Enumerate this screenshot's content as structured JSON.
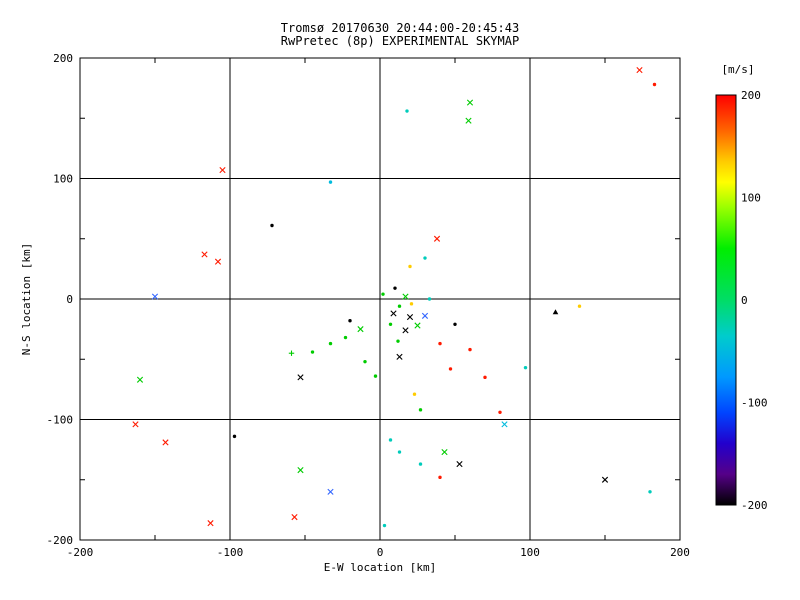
{
  "title": {
    "line1": "Tromsø 20170630 20:44:00-20:45:43",
    "line2": "RwPretec (8p) EXPERIMENTAL SKYMAP"
  },
  "axes": {
    "xlabel": "E-W location [km]",
    "ylabel": "N-S location [km]",
    "xlim": [
      -200,
      200
    ],
    "ylim": [
      -200,
      200
    ],
    "xticks": [
      -200,
      -100,
      0,
      100,
      200
    ],
    "yticks": [
      -200,
      -100,
      0,
      100,
      200
    ],
    "minor_step": 50,
    "grid": true
  },
  "colorbar": {
    "title": "[m/s]",
    "ticks": [
      200,
      100,
      0,
      -100,
      -200
    ],
    "vmin": -200,
    "vmax": 200,
    "stops": [
      {
        "value": 200,
        "color": "#ff0000"
      },
      {
        "value": 165,
        "color": "#ff6600"
      },
      {
        "value": 135,
        "color": "#ffcc00"
      },
      {
        "value": 115,
        "color": "#ffff00"
      },
      {
        "value": 90,
        "color": "#99ff00"
      },
      {
        "value": 50,
        "color": "#00ee00"
      },
      {
        "value": 0,
        "color": "#00dd66"
      },
      {
        "value": -35,
        "color": "#00cccc"
      },
      {
        "value": -75,
        "color": "#0099ff"
      },
      {
        "value": -110,
        "color": "#0044ff"
      },
      {
        "value": -140,
        "color": "#2200cc"
      },
      {
        "value": -170,
        "color": "#550088"
      },
      {
        "value": -200,
        "color": "#000000"
      }
    ]
  },
  "chart_data": {
    "type": "scatter",
    "title": "Tromsø 20170630 20:44:00-20:45:43 / RwPretec (8p) EXPERIMENTAL SKYMAP",
    "xlabel": "E-W location [km]",
    "ylabel": "N-S location [km]",
    "xlim": [
      -200,
      200
    ],
    "ylim": [
      -200,
      200
    ],
    "value_label": "[m/s]",
    "points": [
      {
        "x": 173,
        "y": 190,
        "v": 190,
        "marker": "x",
        "color": "#ff1a00"
      },
      {
        "x": 183,
        "y": 178,
        "v": 185,
        "marker": "dot",
        "color": "#ff1a00"
      },
      {
        "x": 60,
        "y": 163,
        "v": 75,
        "marker": "x",
        "color": "#00cc00"
      },
      {
        "x": 59,
        "y": 148,
        "v": 70,
        "marker": "x",
        "color": "#00cc00"
      },
      {
        "x": 18,
        "y": 156,
        "v": -40,
        "marker": "dot",
        "color": "#00ccbb"
      },
      {
        "x": -105,
        "y": 107,
        "v": 180,
        "marker": "x",
        "color": "#ff1a00"
      },
      {
        "x": -33,
        "y": 97,
        "v": -45,
        "marker": "dot",
        "color": "#00bbdd"
      },
      {
        "x": -72,
        "y": 61,
        "v": -190,
        "marker": "dot",
        "color": "#000000"
      },
      {
        "x": -117,
        "y": 37,
        "v": 185,
        "marker": "x",
        "color": "#ff1a00"
      },
      {
        "x": -108,
        "y": 31,
        "v": 180,
        "marker": "x",
        "color": "#ff1a00"
      },
      {
        "x": 38,
        "y": 50,
        "v": 175,
        "marker": "x",
        "color": "#ff1a00"
      },
      {
        "x": 20,
        "y": 27,
        "v": 125,
        "marker": "dot",
        "color": "#ffcc00"
      },
      {
        "x": 30,
        "y": 34,
        "v": -40,
        "marker": "dot",
        "color": "#00ccbb"
      },
      {
        "x": -150,
        "y": 2,
        "v": -120,
        "marker": "x",
        "color": "#3366ff"
      },
      {
        "x": 2,
        "y": 4,
        "v": 40,
        "marker": "dot",
        "color": "#00cc00"
      },
      {
        "x": 10,
        "y": 9,
        "v": -180,
        "marker": "dot",
        "color": "#000000"
      },
      {
        "x": 17,
        "y": 2,
        "v": 55,
        "marker": "x",
        "color": "#00cc00"
      },
      {
        "x": 13,
        "y": -6,
        "v": 45,
        "marker": "dot",
        "color": "#00cc00"
      },
      {
        "x": 9,
        "y": -12,
        "v": -185,
        "marker": "x",
        "color": "#000000"
      },
      {
        "x": 20,
        "y": -15,
        "v": -190,
        "marker": "x",
        "color": "#000000"
      },
      {
        "x": 30,
        "y": -14,
        "v": -110,
        "marker": "x",
        "color": "#3366ff"
      },
      {
        "x": 25,
        "y": -22,
        "v": 50,
        "marker": "x",
        "color": "#00cc00"
      },
      {
        "x": 17,
        "y": -26,
        "v": -180,
        "marker": "x",
        "color": "#000000"
      },
      {
        "x": 7,
        "y": -21,
        "v": 45,
        "marker": "dot",
        "color": "#00cc00"
      },
      {
        "x": 50,
        "y": -21,
        "v": -195,
        "marker": "dot",
        "color": "#000000"
      },
      {
        "x": 117,
        "y": -11,
        "v": -200,
        "marker": "tri",
        "color": "#000000"
      },
      {
        "x": 133,
        "y": -6,
        "v": 120,
        "marker": "dot",
        "color": "#ffcc00"
      },
      {
        "x": -23,
        "y": -32,
        "v": 40,
        "marker": "dot",
        "color": "#00cc00"
      },
      {
        "x": -33,
        "y": -37,
        "v": 35,
        "marker": "dot",
        "color": "#00cc00"
      },
      {
        "x": -45,
        "y": -44,
        "v": 45,
        "marker": "dot",
        "color": "#00cc00"
      },
      {
        "x": -59,
        "y": -45,
        "v": 50,
        "marker": "plus",
        "color": "#00cc00"
      },
      {
        "x": -53,
        "y": -65,
        "v": -185,
        "marker": "x",
        "color": "#000000"
      },
      {
        "x": -160,
        "y": -67,
        "v": 60,
        "marker": "x",
        "color": "#00cc00"
      },
      {
        "x": -10,
        "y": -52,
        "v": 40,
        "marker": "dot",
        "color": "#00cc00"
      },
      {
        "x": -3,
        "y": -64,
        "v": 35,
        "marker": "dot",
        "color": "#00cc00"
      },
      {
        "x": 13,
        "y": -48,
        "v": -190,
        "marker": "x",
        "color": "#000000"
      },
      {
        "x": 40,
        "y": -37,
        "v": 170,
        "marker": "dot",
        "color": "#ff1a00"
      },
      {
        "x": 60,
        "y": -42,
        "v": 175,
        "marker": "dot",
        "color": "#ff1a00"
      },
      {
        "x": 47,
        "y": -58,
        "v": 180,
        "marker": "dot",
        "color": "#ff1a00"
      },
      {
        "x": 70,
        "y": -65,
        "v": 175,
        "marker": "dot",
        "color": "#ff1a00"
      },
      {
        "x": 23,
        "y": -79,
        "v": 115,
        "marker": "dot",
        "color": "#ffcc00"
      },
      {
        "x": 27,
        "y": -92,
        "v": 55,
        "marker": "dot",
        "color": "#00cc00"
      },
      {
        "x": 80,
        "y": -94,
        "v": 180,
        "marker": "dot",
        "color": "#ff1a00"
      },
      {
        "x": 83,
        "y": -104,
        "v": -55,
        "marker": "x",
        "color": "#00bbdd"
      },
      {
        "x": -163,
        "y": -104,
        "v": 185,
        "marker": "x",
        "color": "#ff1a00"
      },
      {
        "x": -143,
        "y": -119,
        "v": 180,
        "marker": "x",
        "color": "#ff1a00"
      },
      {
        "x": -97,
        "y": -114,
        "v": -195,
        "marker": "dot",
        "color": "#000000"
      },
      {
        "x": 7,
        "y": -117,
        "v": -45,
        "marker": "dot",
        "color": "#00ccbb"
      },
      {
        "x": 13,
        "y": -127,
        "v": -50,
        "marker": "dot",
        "color": "#00ccbb"
      },
      {
        "x": 43,
        "y": -127,
        "v": 65,
        "marker": "x",
        "color": "#00cc00"
      },
      {
        "x": 53,
        "y": -137,
        "v": -190,
        "marker": "x",
        "color": "#000000"
      },
      {
        "x": -53,
        "y": -142,
        "v": 60,
        "marker": "x",
        "color": "#00cc00"
      },
      {
        "x": 27,
        "y": -137,
        "v": -45,
        "marker": "dot",
        "color": "#00ccbb"
      },
      {
        "x": 150,
        "y": -150,
        "v": -185,
        "marker": "x",
        "color": "#000000"
      },
      {
        "x": 180,
        "y": -160,
        "v": -50,
        "marker": "dot",
        "color": "#00ccbb"
      },
      {
        "x": -33,
        "y": -160,
        "v": -115,
        "marker": "x",
        "color": "#3366ff"
      },
      {
        "x": -57,
        "y": -181,
        "v": 185,
        "marker": "x",
        "color": "#ff1a00"
      },
      {
        "x": -113,
        "y": -186,
        "v": 190,
        "marker": "x",
        "color": "#ff1a00"
      },
      {
        "x": 3,
        "y": -188,
        "v": -45,
        "marker": "dot",
        "color": "#00ccbb"
      },
      {
        "x": 21,
        "y": -4,
        "v": 110,
        "marker": "dot",
        "color": "#ffcc00"
      },
      {
        "x": 33,
        "y": 0,
        "v": -35,
        "marker": "dot",
        "color": "#00ccbb"
      },
      {
        "x": 12,
        "y": -35,
        "v": 40,
        "marker": "dot",
        "color": "#00cc00"
      },
      {
        "x": -13,
        "y": -25,
        "v": 50,
        "marker": "x",
        "color": "#00cc00"
      },
      {
        "x": -20,
        "y": -18,
        "v": -180,
        "marker": "dot",
        "color": "#000000"
      },
      {
        "x": 40,
        "y": -148,
        "v": 175,
        "marker": "dot",
        "color": "#ff1a00"
      },
      {
        "x": 97,
        "y": -57,
        "v": -50,
        "marker": "dot",
        "color": "#00ccbb"
      }
    ]
  }
}
